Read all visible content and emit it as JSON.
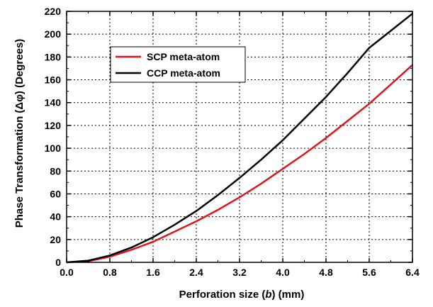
{
  "chart_data": {
    "type": "line",
    "xlabel_parts": [
      "Perforation size (",
      "b",
      ") (mm)"
    ],
    "ylabel": "Phase Transformation (Δφ) (Degrees)",
    "xlim": [
      0.0,
      6.4
    ],
    "ylim": [
      0,
      220
    ],
    "x_ticks": [
      "0.0",
      "0.8",
      "1.6",
      "2.4",
      "3.2",
      "4.0",
      "4.8",
      "5.6",
      "6.4"
    ],
    "y_ticks": [
      "0",
      "20",
      "40",
      "60",
      "80",
      "100",
      "120",
      "140",
      "160",
      "180",
      "200",
      "220"
    ],
    "grid": true,
    "legend_position": "upper-left",
    "series": [
      {
        "name": "SCP meta-atom",
        "color": "#e0151b",
        "x": [
          0.0,
          0.4,
          0.8,
          1.2,
          1.6,
          2.0,
          2.4,
          2.8,
          3.2,
          3.6,
          4.0,
          4.4,
          4.8,
          5.2,
          5.6,
          6.0,
          6.4
        ],
        "y": [
          0,
          1,
          5,
          11,
          18,
          27,
          36,
          46,
          57,
          69,
          82,
          95,
          109,
          124,
          139,
          156,
          173
        ]
      },
      {
        "name": "CCP meta-atom",
        "color": "#000000",
        "x": [
          0.0,
          0.4,
          0.8,
          1.2,
          1.6,
          2.0,
          2.4,
          2.8,
          3.2,
          3.6,
          4.0,
          4.4,
          4.8,
          5.2,
          5.6,
          6.0,
          6.4
        ],
        "y": [
          0,
          1.5,
          6,
          13,
          22,
          33,
          45,
          59,
          74,
          90,
          107,
          126,
          145,
          166,
          188,
          203,
          218
        ]
      }
    ]
  }
}
